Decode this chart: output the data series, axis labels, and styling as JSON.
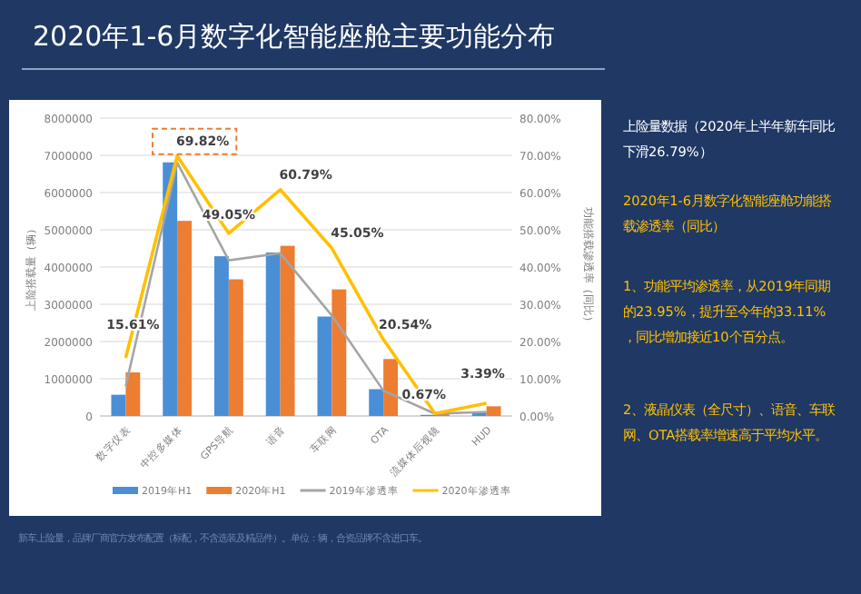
{
  "chart_data": {
    "type": "bar",
    "title": "2020年1-6月数字化智能座舱主要功能分布",
    "categories": [
      "数字仪表",
      "中控多媒体",
      "GPS导航",
      "语音",
      "车联网",
      "OTA",
      "流媒体后视镜",
      "HUD"
    ],
    "ylabel": "上险搭载量（辆）",
    "y2label": "功能搭载渗透率（同比）",
    "ylim": [
      0,
      8000000
    ],
    "yticks": [
      0,
      1000000,
      2000000,
      3000000,
      4000000,
      5000000,
      6000000,
      7000000,
      8000000
    ],
    "y2lim": [
      0,
      80
    ],
    "y2ticks": [
      {
        "value": 0,
        "label": "0.00%"
      },
      {
        "value": 10,
        "label": "10.00%"
      },
      {
        "value": 20,
        "label": "20.00%"
      },
      {
        "value": 30,
        "label": "30.00%"
      },
      {
        "value": 40,
        "label": "40.00%"
      },
      {
        "value": 50,
        "label": "50.00%"
      },
      {
        "value": 60,
        "label": "60.00%"
      },
      {
        "value": 70,
        "label": "70.00%"
      },
      {
        "value": 80,
        "label": "80.00%"
      }
    ],
    "grid": "y",
    "legend": "bottom",
    "series": [
      {
        "name": "2019年H1",
        "color": "#4a8fd6",
        "values": [
          570000,
          6810000,
          4290000,
          4390000,
          2670000,
          720000,
          30000,
          100000
        ]
      },
      {
        "name": "2020年H1",
        "color": "#ed7d31",
        "values": [
          1170000,
          5240000,
          3670000,
          4570000,
          3400000,
          1530000,
          50000,
          260000
        ]
      },
      {
        "name": "2019年渗透率",
        "type": "line",
        "axis": "y2",
        "color": "#a5a5a5",
        "values": [
          8,
          68,
          41.8,
          43.7,
          27,
          6.8,
          0.6,
          1.1
        ]
      },
      {
        "name": "2020年渗透率",
        "type": "line",
        "axis": "y2",
        "color": "#ffc000",
        "values": [
          15.61,
          69.82,
          49.05,
          60.79,
          45.05,
          20.54,
          0.67,
          3.39
        ],
        "value_labels": [
          "15.61%",
          "69.82%",
          "49.05%",
          "60.79%",
          "45.05%",
          "20.54%",
          "0.67%",
          "3.39%"
        ]
      }
    ],
    "annotations": [
      "上险量数据（2020年上半年新车同比下滑26.79%）",
      "2020年1-6月数字化智能座舱功能搭载渗透率（同比）",
      "1、功能平均渗透率，从2019年同期的23.95%，提升至今年的33.11%，同比增加接近10个百分点。",
      "2、液晶仪表（全尺寸）、语音、车联网、OTA搭载率增速高于平均水平。",
      "新车上险量，品牌厂商官方发布配置（标配，不含选装及精品件）。单位：辆，合资品牌不含进口车。"
    ]
  }
}
